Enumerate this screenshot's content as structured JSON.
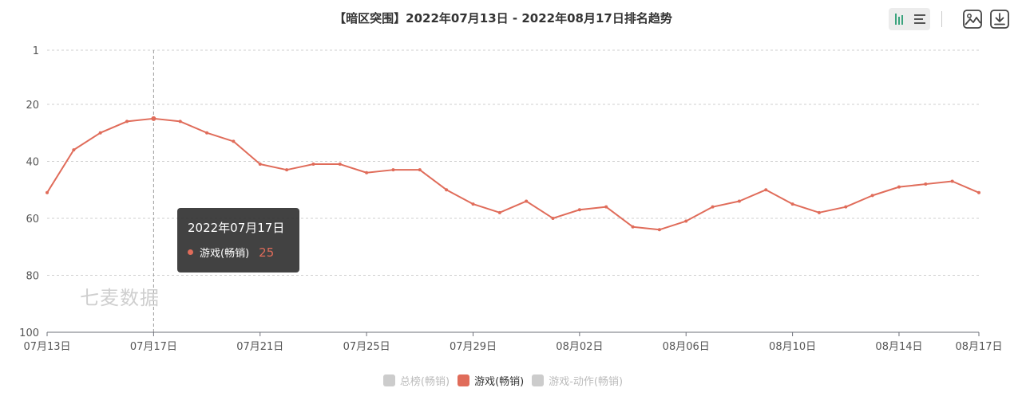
{
  "title": "【暗区突围】2022年07月13日 - 2022年08月17日排名趋势",
  "toolbar": {
    "bar_view_icon": "bar-chart-icon",
    "list_view_icon": "list-icon",
    "save_image_icon": "image-icon",
    "download_icon": "download-icon"
  },
  "tooltip": {
    "date": "2022年07月17日",
    "series": "游戏(畅销)",
    "value": "25"
  },
  "watermark": "七麦数据",
  "legend": [
    {
      "label": "总榜(畅销)",
      "color": "#cccccc",
      "active": false
    },
    {
      "label": "游戏(畅销)",
      "color": "#e06c5a",
      "active": true
    },
    {
      "label": "游戏-动作(畅销)",
      "color": "#cccccc",
      "active": false
    }
  ],
  "chart_data": {
    "type": "line",
    "title": "【暗区突围】2022年07月13日 - 2022年08月17日排名趋势",
    "xlabel": "",
    "ylabel": "",
    "y_inverted": true,
    "ylim": [
      1,
      100
    ],
    "yticks": [
      1,
      20,
      40,
      60,
      80,
      100
    ],
    "grid": true,
    "legend_position": "bottom",
    "x_tick_labels": [
      "07月13日",
      "07月17日",
      "07月21日",
      "07月25日",
      "07月29日",
      "08月02日",
      "08月06日",
      "08月10日",
      "08月14日",
      "08月17日"
    ],
    "x_tick_indices": [
      0,
      4,
      8,
      12,
      16,
      20,
      24,
      28,
      32,
      35
    ],
    "x": [
      "07月13日",
      "07月14日",
      "07月15日",
      "07月16日",
      "07月17日",
      "07月18日",
      "07月19日",
      "07月20日",
      "07月21日",
      "07月22日",
      "07月23日",
      "07月24日",
      "07月25日",
      "07月26日",
      "07月27日",
      "07月28日",
      "07月29日",
      "07月30日",
      "07月31日",
      "08月01日",
      "08月02日",
      "08月03日",
      "08月04日",
      "08月05日",
      "08月06日",
      "08月07日",
      "08月08日",
      "08月09日",
      "08月10日",
      "08月11日",
      "08月12日",
      "08月13日",
      "08月14日",
      "08月15日",
      "08月16日",
      "08月17日"
    ],
    "series": [
      {
        "name": "游戏(畅销)",
        "color": "#e06c5a",
        "values": [
          51,
          36,
          30,
          26,
          25,
          26,
          30,
          33,
          41,
          43,
          41,
          41,
          44,
          43,
          43,
          50,
          55,
          58,
          54,
          60,
          57,
          56,
          63,
          64,
          61,
          56,
          54,
          50,
          55,
          58,
          56,
          52,
          49,
          48,
          47,
          51
        ]
      }
    ],
    "highlight_index": 4
  }
}
